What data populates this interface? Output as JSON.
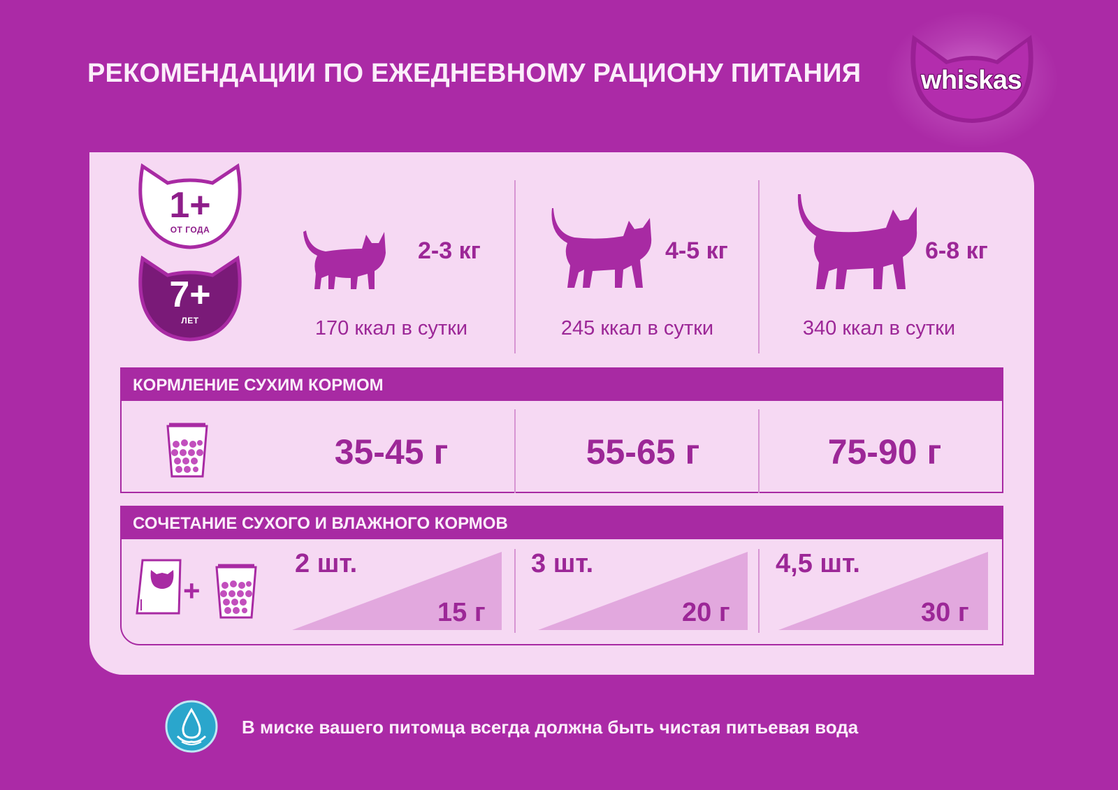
{
  "header": {
    "title": "РЕКОМЕНДАЦИИ ПО ЕЖЕДНЕВНОМУ РАЦИОНУ ПИТАНИЯ",
    "logo_text": "whiskas"
  },
  "age_badges": [
    {
      "number": "1+",
      "sub": "ОТ ГОДА"
    },
    {
      "number": "7+",
      "sub": "ЛЕТ"
    }
  ],
  "weights": [
    {
      "weight": "2-3 кг",
      "kcal": "170 ккал в сутки"
    },
    {
      "weight": "4-5 кг",
      "kcal": "245 ккал в сутки"
    },
    {
      "weight": "6-8 кг",
      "kcal": "340 ккал в сутки"
    }
  ],
  "dry_feeding": {
    "header": "КОРМЛЕНИЕ СУХИМ КОРМОМ",
    "values": [
      "35-45 г",
      "55-65 г",
      "75-90 г"
    ]
  },
  "combined_feeding": {
    "header": "СОЧЕТАНИЕ СУХОГО И ВЛАЖНОГО КОРМОВ",
    "plus": "+",
    "items": [
      {
        "pouches": "2 шт.",
        "grams": "15 г"
      },
      {
        "pouches": "3 шт.",
        "grams": "20 г"
      },
      {
        "pouches": "4,5 шт.",
        "grams": "30 г"
      }
    ]
  },
  "footer": {
    "water_note": "В миске вашего питомца всегда должна быть чистая питьевая вода"
  },
  "colors": {
    "background": "#ab2aa6",
    "card": "#f6d9f3",
    "accent": "#9c2797",
    "dark_badge": "#7a1a78",
    "triangle": "#e2a8de",
    "water": "#2aa6cc"
  },
  "icons": [
    "cat-head-icon",
    "kitten-icon",
    "cat-medium-icon",
    "cat-large-icon",
    "dry-food-cup-icon",
    "pouch-icon",
    "water-drop-icon"
  ]
}
